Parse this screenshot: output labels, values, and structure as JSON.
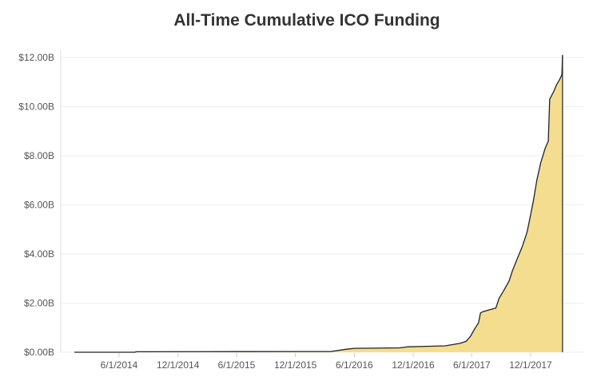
{
  "chart_data": {
    "type": "area",
    "title": "All-Time Cumulative ICO Funding",
    "xlabel": "",
    "ylabel": "",
    "y_unit": "USD billions",
    "ylim": [
      0,
      12.5
    ],
    "xlim": [
      "2014-01-13",
      "2018-03-31"
    ],
    "grid": true,
    "legend": "none",
    "fill_color": "#f4dd8f",
    "line_color": "#222222",
    "y_ticks": [
      {
        "value": 0,
        "label": "$0.00B"
      },
      {
        "value": 2,
        "label": "$2.00B"
      },
      {
        "value": 4,
        "label": "$4.00B"
      },
      {
        "value": 6,
        "label": "$6.00B"
      },
      {
        "value": 8,
        "label": "$8.00B"
      },
      {
        "value": 10,
        "label": "$10.00B"
      },
      {
        "value": 12,
        "label": "$12.00B"
      }
    ],
    "x_ticks": [
      {
        "value": "2014-06-01",
        "label": "6/1/2014"
      },
      {
        "value": "2014-12-01",
        "label": "12/1/2014"
      },
      {
        "value": "2015-06-01",
        "label": "6/1/2015"
      },
      {
        "value": "2015-12-01",
        "label": "12/1/2015"
      },
      {
        "value": "2016-06-01",
        "label": "6/1/2016"
      },
      {
        "value": "2016-12-01",
        "label": "12/1/2016"
      },
      {
        "value": "2017-06-01",
        "label": "6/1/2017"
      },
      {
        "value": "2017-12-01",
        "label": "12/1/2017"
      }
    ],
    "series": [
      {
        "points": [
          {
            "x": "2014-01-13",
            "y": 0.0
          },
          {
            "x": "2014-07-20",
            "y": 0.0
          },
          {
            "x": "2014-07-25",
            "y": 0.02
          },
          {
            "x": "2015-06-01",
            "y": 0.025
          },
          {
            "x": "2016-03-20",
            "y": 0.03
          },
          {
            "x": "2016-05-05",
            "y": 0.12
          },
          {
            "x": "2016-06-01",
            "y": 0.16
          },
          {
            "x": "2016-10-20",
            "y": 0.18
          },
          {
            "x": "2016-11-15",
            "y": 0.22
          },
          {
            "x": "2017-01-10",
            "y": 0.24
          },
          {
            "x": "2017-03-10",
            "y": 0.26
          },
          {
            "x": "2017-04-25",
            "y": 0.36
          },
          {
            "x": "2017-05-15",
            "y": 0.45
          },
          {
            "x": "2017-05-28",
            "y": 0.65
          },
          {
            "x": "2017-06-10",
            "y": 0.95
          },
          {
            "x": "2017-06-22",
            "y": 1.2
          },
          {
            "x": "2017-06-28",
            "y": 1.6
          },
          {
            "x": "2017-07-05",
            "y": 1.65
          },
          {
            "x": "2017-08-15",
            "y": 1.8
          },
          {
            "x": "2017-08-25",
            "y": 2.2
          },
          {
            "x": "2017-09-10",
            "y": 2.55
          },
          {
            "x": "2017-09-25",
            "y": 2.9
          },
          {
            "x": "2017-10-05",
            "y": 3.3
          },
          {
            "x": "2017-10-20",
            "y": 3.8
          },
          {
            "x": "2017-11-05",
            "y": 4.3
          },
          {
            "x": "2017-11-20",
            "y": 4.9
          },
          {
            "x": "2017-12-01",
            "y": 5.6
          },
          {
            "x": "2017-12-10",
            "y": 6.2
          },
          {
            "x": "2017-12-20",
            "y": 7.0
          },
          {
            "x": "2018-01-01",
            "y": 7.7
          },
          {
            "x": "2018-01-15",
            "y": 8.3
          },
          {
            "x": "2018-01-25",
            "y": 8.6
          },
          {
            "x": "2018-01-29",
            "y": 10.3
          },
          {
            "x": "2018-02-10",
            "y": 10.6
          },
          {
            "x": "2018-02-20",
            "y": 10.9
          },
          {
            "x": "2018-03-01",
            "y": 11.1
          },
          {
            "x": "2018-03-08",
            "y": 11.3
          },
          {
            "x": "2018-03-10",
            "y": 12.1
          }
        ]
      }
    ]
  }
}
